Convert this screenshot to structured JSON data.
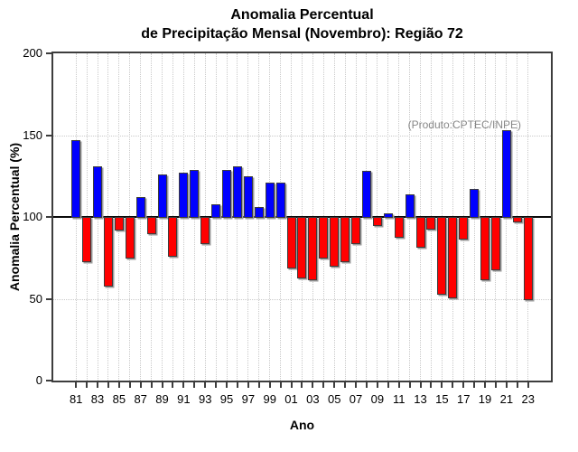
{
  "title": {
    "line1": "Anomalia Percentual",
    "line2": "de Precipitação Mensal (Novembro): Região 72"
  },
  "annotation": {
    "text": "(Produto:CPTEC/INPE)"
  },
  "axes": {
    "y_label": "Anomalia Percentual (%)",
    "x_label": "Ano",
    "y_ticks": [
      0,
      50,
      100,
      150,
      200
    ],
    "x_tick_labels": [
      "81",
      "83",
      "85",
      "87",
      "89",
      "91",
      "93",
      "95",
      "97",
      "99",
      "01",
      "03",
      "05",
      "07",
      "09",
      "11",
      "13",
      "15",
      "17",
      "19",
      "21",
      "23"
    ]
  },
  "colors": {
    "above_baseline": "#0000ff",
    "below_baseline": "#ff0000",
    "baseline_line": "#0a0a0a",
    "grid": "#c9c9c9",
    "annotation_text": "#878787"
  },
  "chart_data": {
    "type": "bar",
    "title": "Anomalia Percentual de Precipitação Mensal (Novembro): Região 72",
    "xlabel": "Ano",
    "ylabel": "Anomalia Percentual (%)",
    "ylim": [
      0,
      200
    ],
    "baseline": 100,
    "grid": "dotted, vertical per year and horizontal at 50/150",
    "legend": "none",
    "color_rule": "blue if value >= 100 else red",
    "years": [
      1981,
      1982,
      1983,
      1984,
      1985,
      1986,
      1987,
      1988,
      1989,
      1990,
      1991,
      1992,
      1993,
      1994,
      1995,
      1996,
      1997,
      1998,
      1999,
      2000,
      2001,
      2002,
      2003,
      2004,
      2005,
      2006,
      2007,
      2008,
      2009,
      2010,
      2011,
      2012,
      2013,
      2014,
      2015,
      2016,
      2017,
      2018,
      2019,
      2020,
      2021,
      2022,
      2023
    ],
    "values": [
      147,
      73,
      131,
      58,
      92,
      75,
      112,
      90,
      126,
      76,
      127,
      129,
      84,
      108,
      129,
      131,
      125,
      106,
      121,
      121,
      69,
      63,
      62,
      75,
      70,
      73,
      84,
      128,
      95,
      102,
      88,
      114,
      82,
      93,
      53,
      51,
      87,
      117,
      62,
      68,
      153,
      97,
      50
    ]
  }
}
